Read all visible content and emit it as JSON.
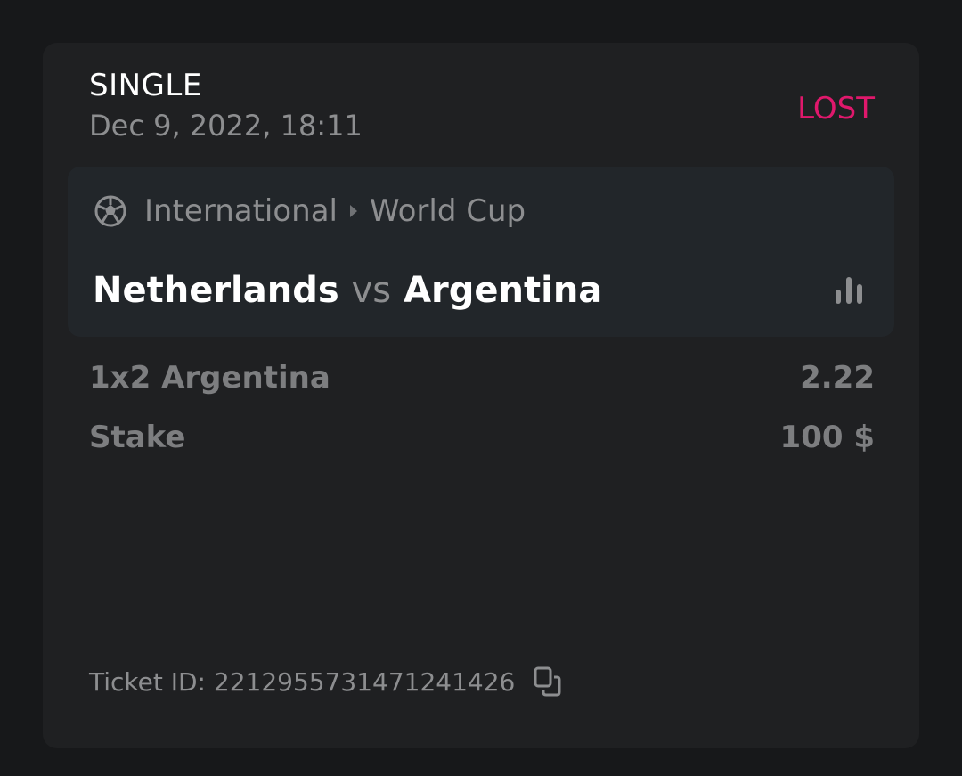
{
  "bet": {
    "type": "SINGLE",
    "date": "Dec 9, 2022, 18:11",
    "status": "LOST",
    "status_color": "#e0186c"
  },
  "event": {
    "sport_icon": "soccer-ball-icon",
    "category": "International",
    "tournament": "World Cup",
    "home": "Netherlands",
    "vs": "vs",
    "away": "Argentina",
    "stats_icon": "bar-chart-icon"
  },
  "selection": {
    "label": "1x2 Argentina",
    "odds": "2.22"
  },
  "stake": {
    "label": "Stake",
    "value": "100 $"
  },
  "ticket": {
    "label": "Ticket ID: 2212955731471241426",
    "copy_icon": "copy-icon"
  }
}
